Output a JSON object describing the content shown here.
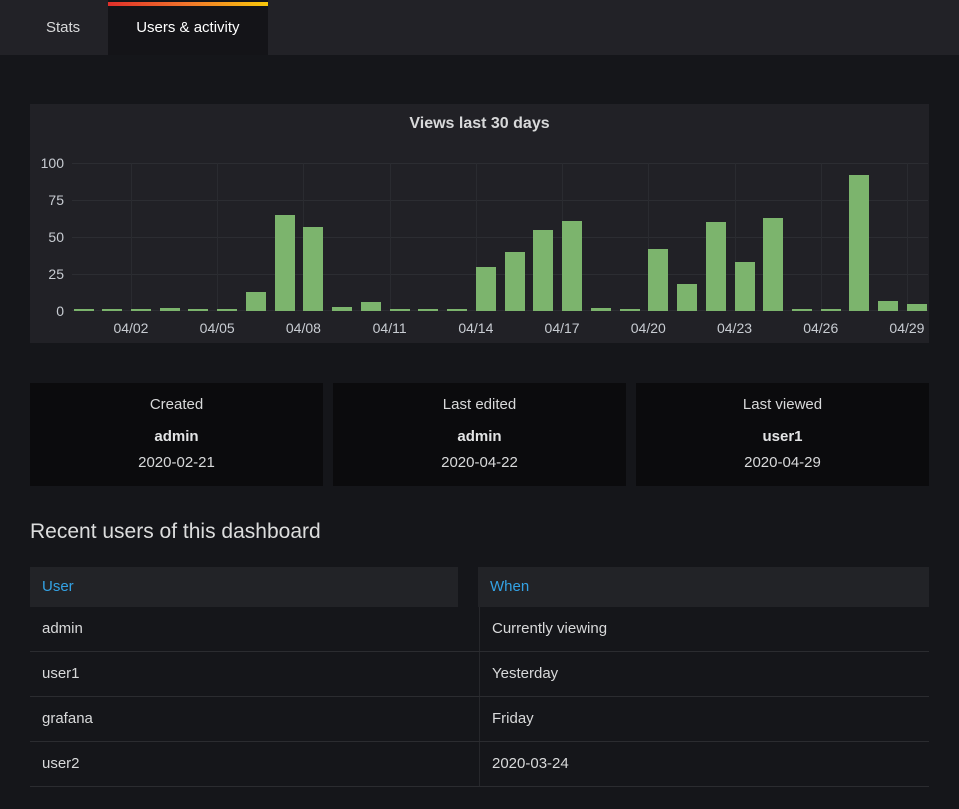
{
  "tabs": [
    {
      "label": "Stats",
      "active": false
    },
    {
      "label": "Users & activity",
      "active": true
    }
  ],
  "chart_data": {
    "type": "bar",
    "title": "Views last 30 days",
    "x": [
      "03/31",
      "04/01",
      "04/02",
      "04/03",
      "04/04",
      "04/05",
      "04/06",
      "04/07",
      "04/08",
      "04/09",
      "04/10",
      "04/11",
      "04/12",
      "04/13",
      "04/14",
      "04/15",
      "04/16",
      "04/17",
      "04/18",
      "04/19",
      "04/20",
      "04/21",
      "04/22",
      "04/23",
      "04/24",
      "04/25",
      "04/26",
      "04/27",
      "04/28",
      "04/29"
    ],
    "values": [
      1,
      1,
      1,
      2,
      1,
      1,
      13,
      65,
      57,
      3,
      6,
      1,
      1,
      1,
      30,
      40,
      55,
      61,
      2,
      1,
      42,
      18,
      60,
      33,
      63,
      1,
      1,
      92,
      7,
      5
    ],
    "xticks": [
      "04/02",
      "04/05",
      "04/08",
      "04/11",
      "04/14",
      "04/17",
      "04/20",
      "04/23",
      "04/26",
      "04/29"
    ],
    "yticks": [
      0,
      25,
      50,
      75,
      100
    ],
    "ylim": [
      0,
      100
    ],
    "xlabel": "",
    "ylabel": "",
    "grid": true,
    "legend": "none",
    "bar_color": "#7cb46d"
  },
  "stats": [
    {
      "label": "Created",
      "name": "admin",
      "date": "2020-02-21"
    },
    {
      "label": "Last edited",
      "name": "admin",
      "date": "2020-04-22"
    },
    {
      "label": "Last viewed",
      "name": "user1",
      "date": "2020-04-29"
    }
  ],
  "recent_users": {
    "heading": "Recent users of this dashboard",
    "columns": [
      "User",
      "When"
    ],
    "rows": [
      {
        "user": "admin",
        "when": "Currently viewing"
      },
      {
        "user": "user1",
        "when": "Yesterday"
      },
      {
        "user": "grafana",
        "when": "Friday"
      },
      {
        "user": "user2",
        "when": "2020-03-24"
      }
    ]
  },
  "colors": {
    "accent_blue": "#33a2e5",
    "bar_green": "#7cb46d",
    "tab_gradient_start": "#e02f2a",
    "tab_gradient_end": "#f9c80a"
  }
}
